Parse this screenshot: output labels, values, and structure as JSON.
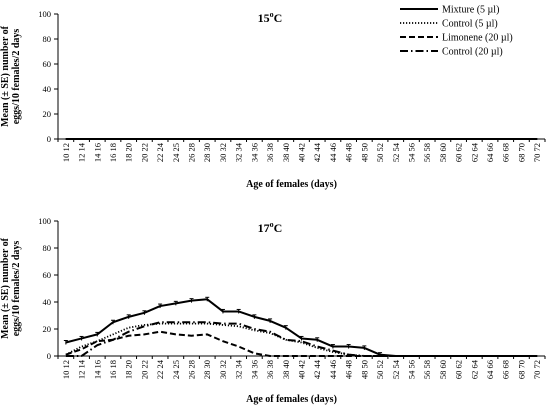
{
  "chart_data": [
    {
      "type": "line",
      "title": "15",
      "title_sup": "o",
      "title_unit": "C",
      "xlabel": "Age of females (days)",
      "ylabel": [
        "Mean (± SE) number of",
        "eggs/10 females/2 days"
      ],
      "ylim": [
        0,
        100
      ],
      "yticks": [
        0,
        20,
        40,
        60,
        80,
        100
      ],
      "categories": [
        "10 12",
        "12 14",
        "14 16",
        "16 18",
        "18 20",
        "20 22",
        "22 24",
        "24 25",
        "26 28",
        "28 30",
        "30 32",
        "32 34",
        "34 36",
        "36 38",
        "38 40",
        "40 42",
        "42 44",
        "44 46",
        "46 48",
        "48 50",
        "50 52",
        "52 54",
        "54 56",
        "56 58",
        "58 60",
        "60 62",
        "62 64",
        "64 66",
        "66 68",
        "68 70",
        "70 72"
      ],
      "legend_position": "top-right",
      "series": [
        {
          "name": "Mixture (5 µl)",
          "style": "solid",
          "values": [
            0,
            0,
            0,
            0,
            0,
            0,
            0,
            0,
            0,
            0,
            0,
            0,
            0,
            0,
            0,
            0,
            0,
            0,
            0,
            0,
            0,
            0,
            0,
            0,
            0,
            0,
            0,
            0,
            0,
            0,
            0
          ]
        },
        {
          "name": "Control  (5 µl)",
          "style": "dotted",
          "values": [
            0,
            0,
            0,
            0,
            0,
            0,
            0,
            0,
            0,
            0,
            0,
            0,
            0,
            0,
            0,
            0,
            0,
            0,
            0,
            0,
            0,
            0,
            0,
            0,
            0,
            0,
            0,
            0,
            0,
            0,
            0
          ]
        },
        {
          "name": "Limonene (20 µl)",
          "style": "dashed",
          "values": [
            0,
            0,
            0,
            0,
            0,
            0,
            0,
            0,
            0,
            0,
            0,
            0,
            0,
            0,
            0,
            0,
            0,
            0,
            0,
            0,
            0,
            0,
            0,
            0,
            0,
            0,
            0,
            0,
            0,
            0,
            0
          ]
        },
        {
          "name": "Control (20 µl)",
          "style": "dashdot",
          "values": [
            0,
            0,
            0,
            0,
            0,
            0,
            0,
            0,
            0,
            0,
            0,
            0,
            0,
            0,
            0,
            0,
            0,
            0,
            0,
            0,
            0,
            0,
            0,
            0,
            0,
            0,
            0,
            0,
            0,
            0,
            0
          ]
        }
      ]
    },
    {
      "type": "line",
      "title": "17",
      "title_sup": "o",
      "title_unit": "C",
      "xlabel": "Age of females (days)",
      "ylabel": [
        "Mean (± SE) number of",
        "eggs/10 females/2 days"
      ],
      "ylim": [
        0,
        100
      ],
      "yticks": [
        0,
        20,
        40,
        60,
        80,
        100
      ],
      "categories": [
        "10 12",
        "12 14",
        "14 16",
        "16 18",
        "18 20",
        "20 22",
        "22 24",
        "24 25",
        "26 28",
        "28 30",
        "30 32",
        "32 34",
        "34 36",
        "36 38",
        "38 40",
        "40 42",
        "42 44",
        "44 46",
        "46 48",
        "48 50",
        "50 52",
        "52 54",
        "54 56",
        "56 58",
        "58 60",
        "60 62",
        "62 64",
        "64 66",
        "66 68",
        "68 70",
        "70 72"
      ],
      "series": [
        {
          "name": "Mixture (5 µl)",
          "style": "solid",
          "values": [
            10,
            13,
            16,
            25,
            29,
            32,
            37,
            39,
            41,
            42,
            33,
            33,
            29,
            26,
            21,
            13,
            12,
            7,
            7,
            6,
            1,
            0,
            0,
            0,
            0,
            0,
            0,
            0,
            0,
            0,
            0
          ]
        },
        {
          "name": "Control  (5 µl)",
          "style": "dotted",
          "values": [
            1,
            7,
            11,
            16,
            21,
            23,
            24,
            24,
            24,
            24,
            23,
            22,
            19,
            17,
            12,
            10,
            6,
            3,
            1,
            0,
            0,
            0,
            0,
            0,
            0,
            0,
            0,
            0,
            0,
            0,
            0
          ]
        },
        {
          "name": "Limonene (20 µl)",
          "style": "dashed",
          "values": [
            1,
            5,
            11,
            12,
            15,
            16,
            18,
            16,
            15,
            16,
            11,
            7,
            2,
            0,
            0,
            0,
            0,
            0,
            0,
            0,
            0,
            0,
            0,
            0,
            0,
            0,
            0,
            0,
            0,
            0,
            0
          ]
        },
        {
          "name": "Control (20 µl)",
          "style": "dashdot",
          "values": [
            0,
            0,
            8,
            12,
            18,
            22,
            25,
            25,
            25,
            25,
            24,
            24,
            20,
            18,
            12,
            11,
            7,
            4,
            1,
            0,
            0,
            0,
            0,
            0,
            0,
            0,
            0,
            0,
            0,
            0,
            0
          ]
        }
      ]
    }
  ]
}
